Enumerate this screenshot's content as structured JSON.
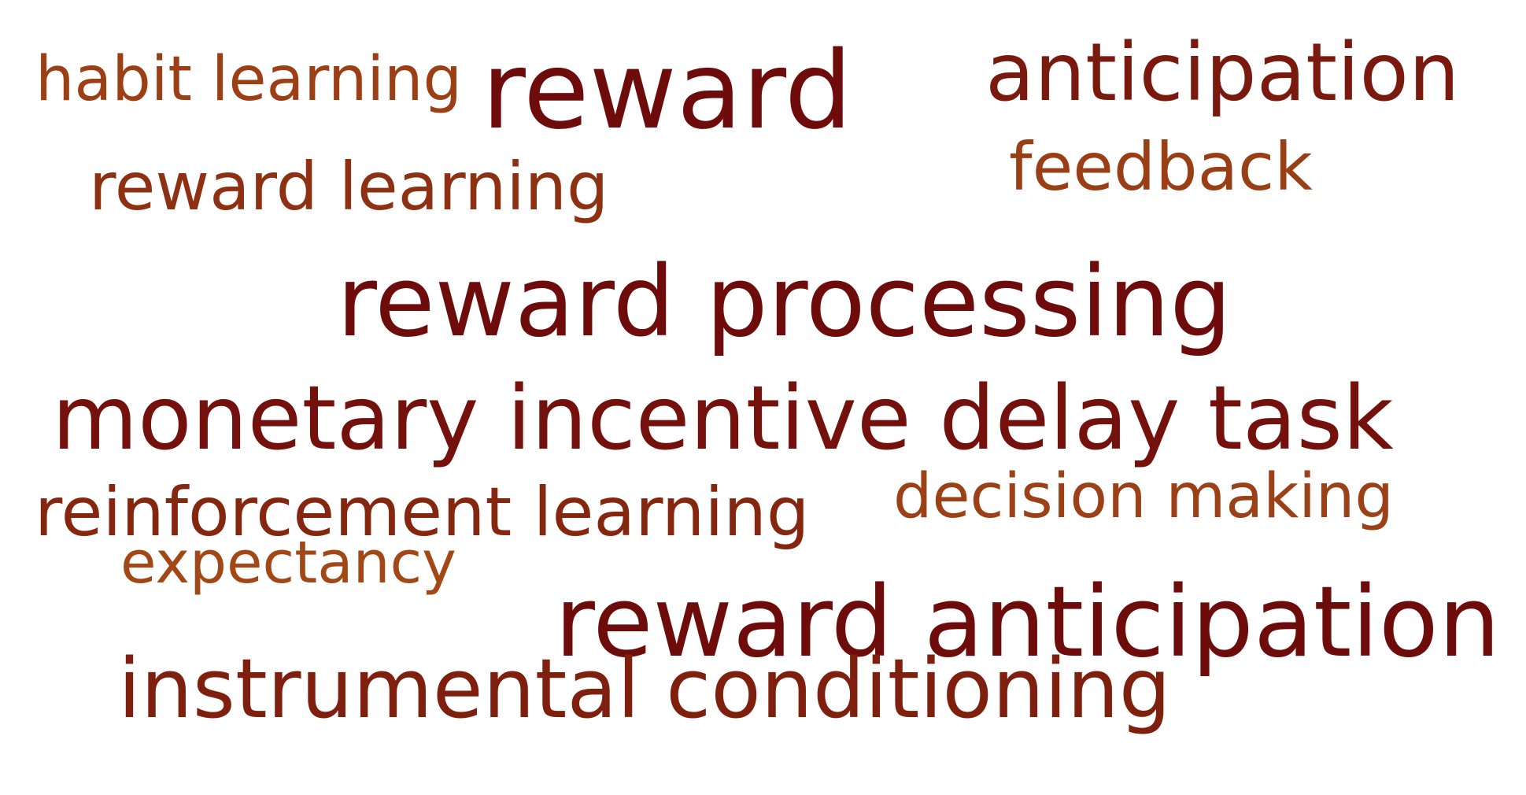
{
  "words": [
    {
      "text": "habit learning",
      "color": "#9C3F15"
    },
    {
      "text": "reward",
      "color": "#6E0B0B"
    },
    {
      "text": "anticipation",
      "color": "#7A1A0E"
    },
    {
      "text": "feedback",
      "color": "#9A3E16"
    },
    {
      "text": "reward learning",
      "color": "#8E3112"
    },
    {
      "text": "reward processing",
      "color": "#6E0B0B"
    },
    {
      "text": "monetary incentive delay task",
      "color": "#74110C"
    },
    {
      "text": "reinforcement learning",
      "color": "#85260F"
    },
    {
      "text": "decision making",
      "color": "#9C4117"
    },
    {
      "text": "expectancy",
      "color": "#A24816"
    },
    {
      "text": "reward anticipation",
      "color": "#6E0B0B"
    },
    {
      "text": "instrumental conditioning",
      "color": "#7F1F0E"
    }
  ]
}
